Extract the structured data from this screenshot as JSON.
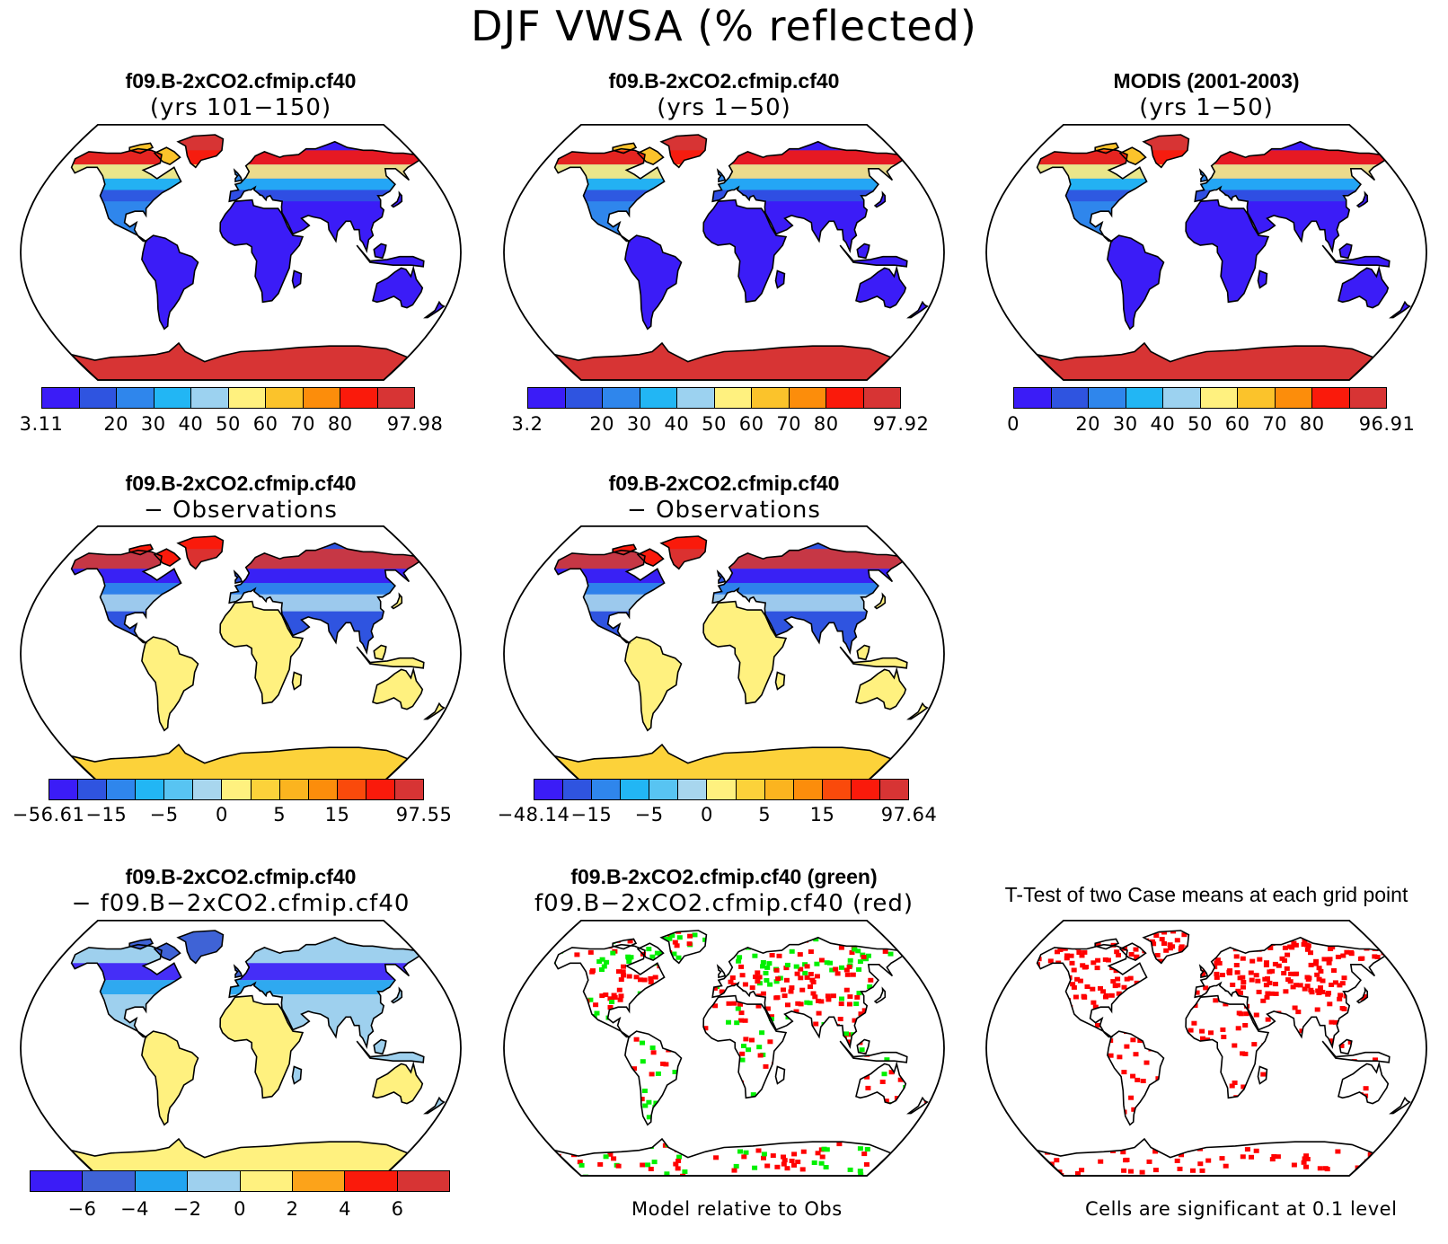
{
  "title": "DJF VWSA (% reflected)",
  "colors": {
    "absolute": [
      "#3b1cf7",
      "#2f54e0",
      "#2f86ec",
      "#22b6f4",
      "#9cd2f0",
      "#fff17f",
      "#fbc32b",
      "#fc8d0b",
      "#fa1a0b",
      "#d73434"
    ],
    "difference": [
      "#3b1cf7",
      "#2f54e0",
      "#2f86ec",
      "#22b6f4",
      "#58c4f2",
      "#a8d6ee",
      "#fff17f",
      "#fcd23a",
      "#fbb41f",
      "#fc8d0b",
      "#fa4a0b",
      "#fa1a0b",
      "#d73434"
    ],
    "model_diff": [
      "#3b1cf7",
      "#3f63d6",
      "#22a4f0",
      "#9ed0ee",
      "#fff17f",
      "#fca31a",
      "#fa1a0b",
      "#d73434"
    ]
  },
  "panels": [
    {
      "id": "p1",
      "line1": "f09.B-2xCO2.cfmip.cf40",
      "line2": "(yrs 101−150)",
      "kind": "absolute",
      "ticks": [
        "3.11",
        "20",
        "30",
        "40",
        "50",
        "60",
        "70",
        "80",
        "97.98"
      ]
    },
    {
      "id": "p2",
      "line1": "f09.B-2xCO2.cfmip.cf40",
      "line2": "(yrs 1−50)",
      "kind": "absolute",
      "ticks": [
        "3.2",
        "20",
        "30",
        "40",
        "50",
        "60",
        "70",
        "80",
        "97.92"
      ]
    },
    {
      "id": "p3",
      "line1": "MODIS (2001-2003)",
      "line2": "(yrs 1−50)",
      "kind": "absolute",
      "ticks": [
        "0",
        "20",
        "30",
        "40",
        "50",
        "60",
        "70",
        "80",
        "96.91"
      ]
    },
    {
      "id": "p4",
      "line1": "f09.B-2xCO2.cfmip.cf40",
      "line2": "− Observations",
      "kind": "difference",
      "ticks": [
        "−56.61",
        "−15",
        "−5",
        "0",
        "5",
        "15",
        "97.55"
      ]
    },
    {
      "id": "p5",
      "line1": "f09.B-2xCO2.cfmip.cf40",
      "line2": "− Observations",
      "kind": "difference",
      "ticks": [
        "−48.14",
        "−15",
        "−5",
        "0",
        "5",
        "15",
        "97.64"
      ]
    },
    {
      "id": "p6",
      "line1": "f09.B-2xCO2.cfmip.cf40",
      "line2": "− f09.B−2xCO2.cfmip.cf40",
      "kind": "model_diff",
      "ticks": [
        "−6",
        "−4",
        "−2",
        "0",
        "2",
        "4",
        "6"
      ]
    },
    {
      "id": "p7",
      "line1": "f09.B-2xCO2.cfmip.cf40 (green)",
      "line2": "f09.B−2xCO2.cfmip.cf40 (red)",
      "kind": "model_relative",
      "caption": "Model relative to Obs"
    },
    {
      "id": "p8",
      "line1": "T-Test of two Case means at each grid point",
      "line2": "",
      "kind": "ttest",
      "caption": "Cells are significant at 0.1 level"
    }
  ],
  "chart_data": {
    "type": "heatmap",
    "projection": "Robinson",
    "panels": [
      {
        "title": "f09.B-2xCO2.cfmip.cf40 (yrs 101−150)",
        "levels": [
          3.11,
          20,
          30,
          40,
          50,
          60,
          70,
          80,
          97.98
        ]
      },
      {
        "title": "f09.B-2xCO2.cfmip.cf40 (yrs 1−50)",
        "levels": [
          3.2,
          20,
          30,
          40,
          50,
          60,
          70,
          80,
          97.92
        ]
      },
      {
        "title": "MODIS (2001-2003) (yrs 1−50)",
        "levels": [
          0,
          20,
          30,
          40,
          50,
          60,
          70,
          80,
          96.91
        ]
      },
      {
        "title": "f09.B-2xCO2.cfmip.cf40 − Observations",
        "levels": [
          -56.61,
          -15,
          -5,
          0,
          5,
          15,
          97.55
        ]
      },
      {
        "title": "f09.B-2xCO2.cfmip.cf40 − Observations",
        "levels": [
          -48.14,
          -15,
          -5,
          0,
          5,
          15,
          97.64
        ]
      },
      {
        "title": "f09.B-2xCO2.cfmip.cf40 − f09.B−2xCO2.cfmip.cf40",
        "levels": [
          -6,
          -4,
          -2,
          0,
          2,
          4,
          6
        ]
      },
      {
        "title": "f09.B-2xCO2.cfmip.cf40 (green) f09.B−2xCO2.cfmip.cf40 (red)",
        "legend": "Model relative to Obs"
      },
      {
        "title": "T-Test of two Case means at each grid point",
        "legend": "Cells are significant at 0.1 level"
      }
    ]
  }
}
